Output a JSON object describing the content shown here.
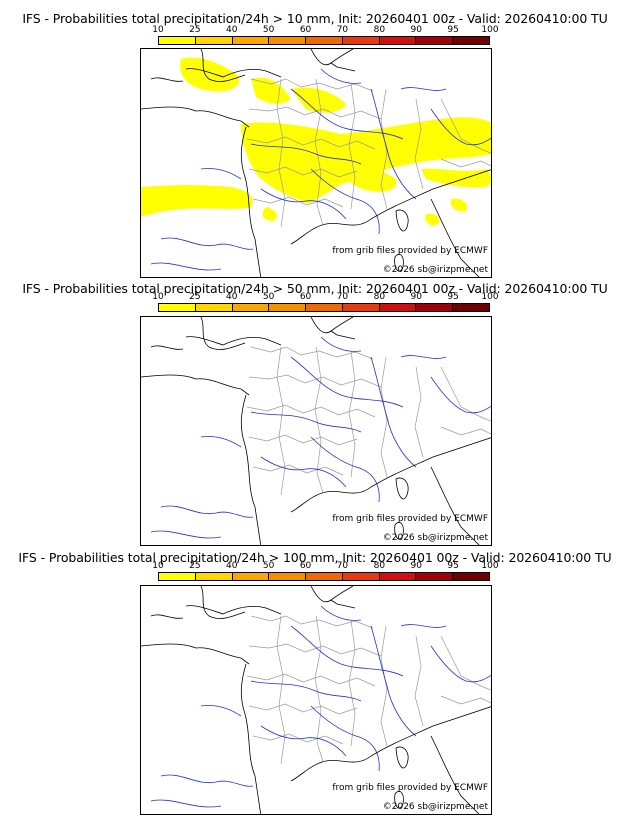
{
  "panels": [
    {
      "title": "IFS - Probabilities total precipitation/24h > 10 mm, Init: 20260401 00z - Valid: 20260410:00 TU",
      "has_precip": true
    },
    {
      "title": "IFS - Probabilities total precipitation/24h > 50 mm, Init: 20260401 00z - Valid: 20260410:00 TU",
      "has_precip": false
    },
    {
      "title": "IFS - Probabilities total precipitation/24h > 100 mm, Init: 20260401 00z - Valid: 20260410:00 TU",
      "has_precip": false
    }
  ],
  "colorbar": {
    "ticks": [
      "10",
      "25",
      "40",
      "50",
      "60",
      "70",
      "80",
      "90",
      "95",
      "100"
    ],
    "colors": [
      "#ffff00",
      "#ffd500",
      "#f8a900",
      "#f49000",
      "#f06800",
      "#e83a10",
      "#d01010",
      "#a00008",
      "#700000"
    ]
  },
  "credits": {
    "source": "from grib files provided by ECMWF",
    "copyright": "©2026 sb@irizpme.net"
  },
  "map_colors": {
    "coast": "#000000",
    "rivers": "#2233cc",
    "borders": "#9a9a9a",
    "precip": "#ffff00"
  }
}
